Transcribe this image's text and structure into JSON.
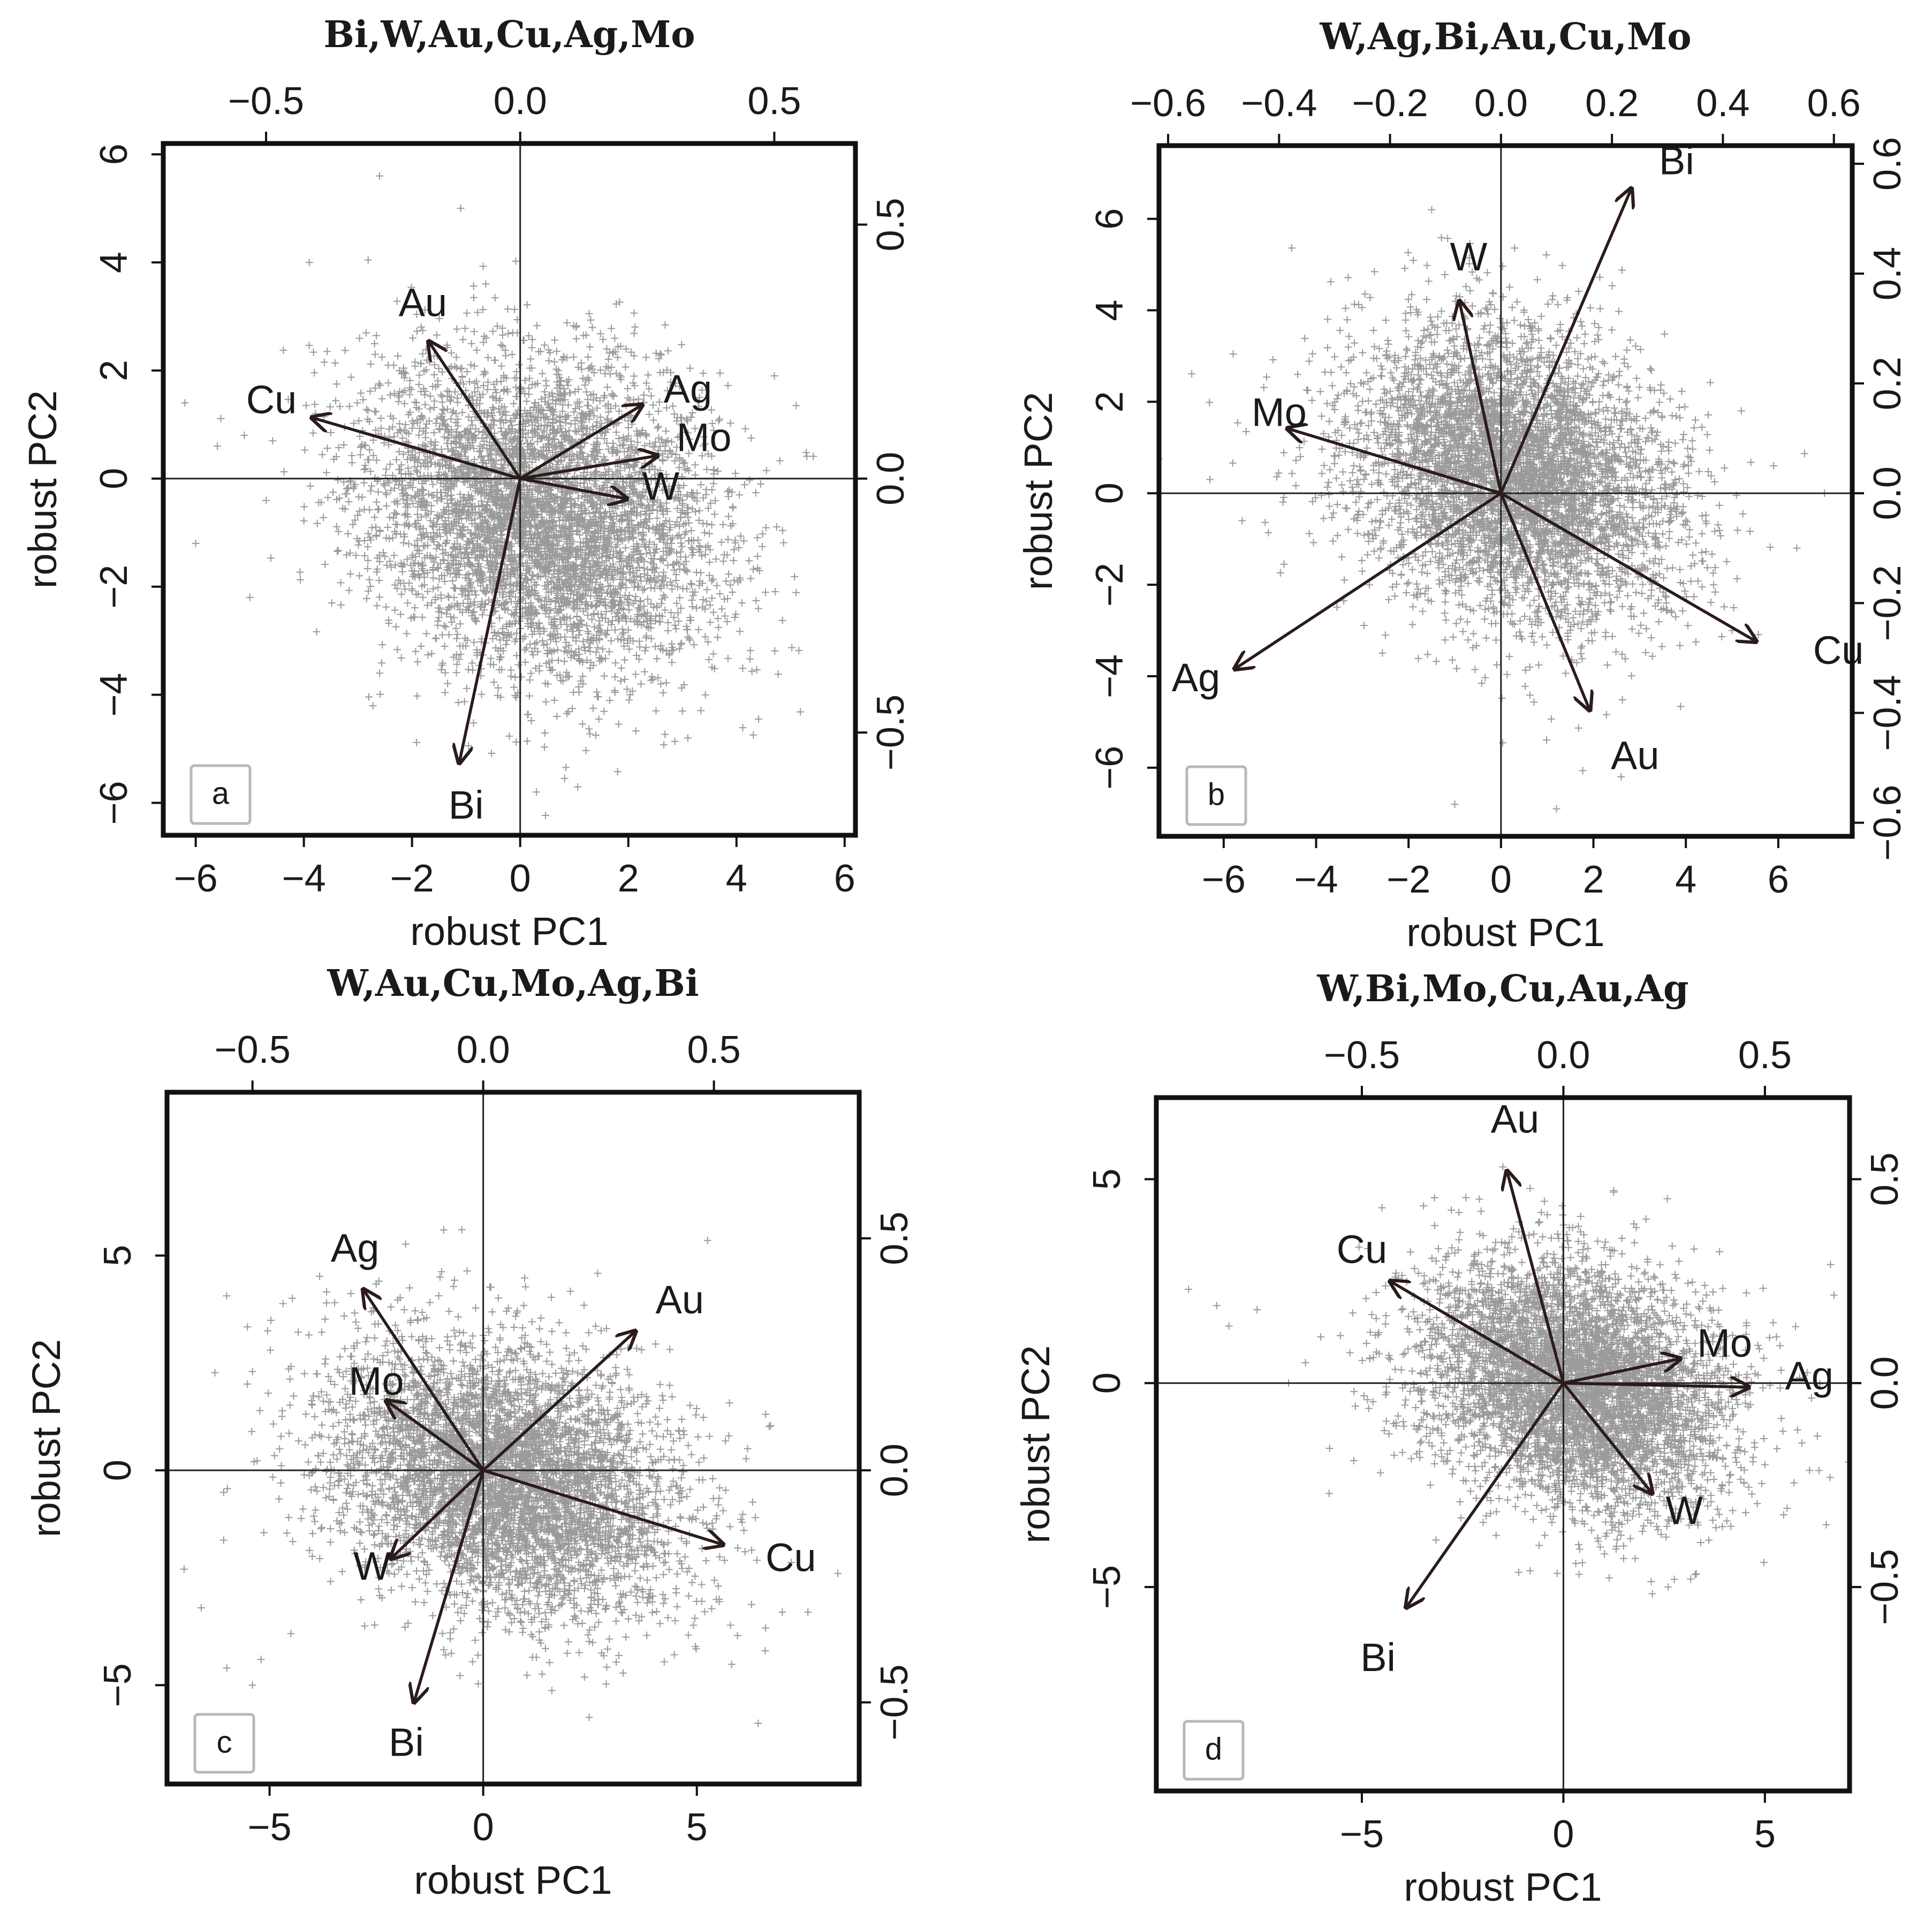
{
  "figure": {
    "description_free": true
  },
  "chart_data": [
    {
      "id": "a",
      "type": "biplot",
      "panel_label": "a",
      "title": "Bi,W,Au,Cu,Ag,Mo",
      "xlabel": "robust PC1",
      "ylabel": "robust PC2",
      "xlim": [
        -6.6,
        6.2
      ],
      "ylim": [
        -6.6,
        6.2
      ],
      "xticks": [
        -6,
        -4,
        -2,
        0,
        2,
        4,
        6
      ],
      "xtick_labels": [
        "−6",
        "−4",
        "−2",
        "0",
        "2",
        "4",
        "6"
      ],
      "yticks": [
        -6,
        -4,
        -2,
        0,
        2,
        4,
        6
      ],
      "ytick_labels": [
        "−6",
        "−4",
        "−2",
        "0",
        "2",
        "4",
        "6"
      ],
      "top_ticks": [
        -0.5,
        0.0,
        0.5
      ],
      "top_tick_labels": [
        "−0.5",
        "0.0",
        "0.5"
      ],
      "right_ticks": [
        -0.5,
        0.0,
        0.5
      ],
      "right_tick_labels": [
        "−0.5",
        "0.0",
        "0.5"
      ],
      "loading_scale": 0.1064,
      "scatter_center": [
        0.4,
        -0.7
      ],
      "scatter_spread": [
        1.6,
        1.45
      ],
      "scatter_corr": -0.2,
      "outliers": [
        [
          -6.2,
          1.4
        ],
        [
          -5.6,
          0.6
        ],
        [
          -5.1,
          0.8
        ],
        [
          -6.0,
          -1.2
        ],
        [
          -5.0,
          -2.2
        ],
        [
          -3.9,
          4.0
        ],
        [
          -2.6,
          5.6
        ],
        [
          -1.1,
          5.0
        ],
        [
          4.7,
          1.9
        ],
        [
          3.1,
          -4.8
        ],
        [
          2.6,
          -3.8
        ],
        [
          0.3,
          -5.8
        ],
        [
          -2.6,
          -3.6
        ],
        [
          4.1,
          -2.3
        ]
      ],
      "loadings": [
        {
          "name": "Au",
          "x": -0.18,
          "y": 0.27,
          "label_pos": [
            -1.8,
            3.2
          ]
        },
        {
          "name": "Cu",
          "x": -0.41,
          "y": 0.12,
          "label_pos": [
            -4.6,
            1.4
          ]
        },
        {
          "name": "Ag",
          "x": 0.24,
          "y": 0.145,
          "label_pos": [
            3.1,
            1.6
          ]
        },
        {
          "name": "Mo",
          "x": 0.27,
          "y": 0.045,
          "label_pos": [
            3.4,
            0.7
          ]
        },
        {
          "name": "W",
          "x": 0.21,
          "y": -0.04,
          "label_pos": [
            2.6,
            -0.2
          ]
        },
        {
          "name": "Bi",
          "x": -0.12,
          "y": -0.56,
          "label_pos": [
            -1.0,
            -6.1
          ]
        }
      ]
    },
    {
      "id": "b",
      "type": "biplot",
      "panel_label": "b",
      "title": "W,Ag,Bi,Au,Cu,Mo",
      "xlabel": "robust PC1",
      "ylabel": "robust PC2",
      "xlim": [
        -7.4,
        7.6
      ],
      "ylim": [
        -7.5,
        7.6
      ],
      "xticks": [
        -6,
        -4,
        -2,
        0,
        2,
        4,
        6
      ],
      "xtick_labels": [
        "−6",
        "−4",
        "−2",
        "0",
        "2",
        "4",
        "6"
      ],
      "yticks": [
        -6,
        -4,
        -2,
        0,
        2,
        4,
        6
      ],
      "ytick_labels": [
        "−6",
        "−4",
        "−2",
        "0",
        "2",
        "4",
        "6"
      ],
      "top_ticks": [
        -0.6,
        -0.4,
        -0.2,
        0.0,
        0.2,
        0.4,
        0.6
      ],
      "top_tick_labels": [
        "−0.6",
        "−0.4",
        "−0.2",
        "0.0",
        "0.2",
        "0.4",
        "0.6"
      ],
      "right_ticks": [
        -0.6,
        -0.4,
        -0.2,
        0.0,
        0.2,
        0.4,
        0.6
      ],
      "right_tick_labels": [
        "−0.6",
        "−0.4",
        "−0.2",
        "0.0",
        "0.2",
        "0.4",
        "0.6"
      ],
      "loading_scale": 0.0833,
      "scatter_center": [
        0.3,
        0.4
      ],
      "scatter_spread": [
        1.75,
        1.6
      ],
      "scatter_corr": -0.25,
      "outliers": [
        [
          -6.3,
          0.3
        ],
        [
          -5.6,
          -0.6
        ],
        [
          5.9,
          0.6
        ],
        [
          6.4,
          -1.2
        ],
        [
          7.0,
          0.0
        ],
        [
          5.0,
          -3.0
        ],
        [
          -1.5,
          6.2
        ],
        [
          2.6,
          -6.2
        ],
        [
          1.2,
          -6.9
        ],
        [
          -1.0,
          -6.8
        ],
        [
          4.6,
          -2.0
        ],
        [
          -4.4,
          2.6
        ],
        [
          5.2,
          1.8
        ]
      ],
      "loadings": [
        {
          "name": "W",
          "x": -0.075,
          "y": 0.35,
          "label_pos": [
            -0.7,
            5.1
          ]
        },
        {
          "name": "Ag",
          "x": -0.48,
          "y": -0.32,
          "label_pos": [
            -6.6,
            -4.1
          ]
        },
        {
          "name": "Bi",
          "x": 0.235,
          "y": 0.555,
          "label_pos": [
            3.8,
            7.2
          ]
        },
        {
          "name": "Au",
          "x": 0.16,
          "y": -0.395,
          "label_pos": [
            2.9,
            -5.8
          ]
        },
        {
          "name": "Cu",
          "x": 0.46,
          "y": -0.27,
          "label_pos": [
            7.3,
            -3.5
          ]
        },
        {
          "name": "Mo",
          "x": -0.385,
          "y": 0.118,
          "label_pos": [
            -4.8,
            1.7
          ]
        }
      ]
    },
    {
      "id": "c",
      "type": "biplot",
      "panel_label": "c",
      "title": "W,Au,Cu,Mo,Ag,Bi",
      "xlabel": "robust PC1",
      "ylabel": "robust PC2",
      "xlim": [
        -7.4,
        8.8
      ],
      "ylim": [
        -7.3,
        8.8
      ],
      "xticks": [
        -5,
        0,
        5
      ],
      "xtick_labels": [
        "−5",
        "0",
        "5"
      ],
      "yticks": [
        -5,
        0,
        5
      ],
      "ytick_labels": [
        "−5",
        "0",
        "5"
      ],
      "top_ticks": [
        -0.5,
        0.0,
        0.5
      ],
      "top_tick_labels": [
        "−0.5",
        "0.0",
        "0.5"
      ],
      "right_ticks": [
        -0.5,
        0.0,
        0.5
      ],
      "right_tick_labels": [
        "−0.5",
        "0.0",
        "0.5"
      ],
      "loading_scale": 0.0926,
      "scatter_center": [
        0.5,
        -0.2
      ],
      "scatter_spread": [
        2.0,
        1.6
      ],
      "scatter_corr": -0.3,
      "outliers": [
        [
          -7.0,
          -2.3
        ],
        [
          -6.0,
          -4.6
        ],
        [
          -5.2,
          -4.4
        ],
        [
          -5.4,
          -5.0
        ],
        [
          -4.5,
          -3.8
        ],
        [
          -6.6,
          -3.2
        ],
        [
          -5.4,
          2.3
        ],
        [
          7.0,
          -3.3
        ],
        [
          8.3,
          -2.4
        ],
        [
          7.6,
          -3.3
        ],
        [
          6.6,
          -4.2
        ],
        [
          -0.5,
          5.6
        ],
        [
          2.5,
          -3.2
        ],
        [
          -4.0,
          -2.0
        ]
      ],
      "loadings": [
        {
          "name": "Ag",
          "x": -0.26,
          "y": 0.39,
          "label_pos": [
            -3.0,
            5.1
          ]
        },
        {
          "name": "Au",
          "x": 0.33,
          "y": 0.3,
          "label_pos": [
            4.6,
            3.9
          ]
        },
        {
          "name": "Mo",
          "x": -0.21,
          "y": 0.15,
          "label_pos": [
            -2.5,
            2.0
          ]
        },
        {
          "name": "Cu",
          "x": 0.52,
          "y": -0.16,
          "label_pos": [
            7.2,
            -2.1
          ]
        },
        {
          "name": "W",
          "x": -0.2,
          "y": -0.19,
          "label_pos": [
            -2.6,
            -2.3
          ]
        },
        {
          "name": "Bi",
          "x": -0.15,
          "y": -0.5,
          "label_pos": [
            -1.8,
            -6.4
          ]
        }
      ]
    },
    {
      "id": "d",
      "type": "biplot",
      "panel_label": "d",
      "title": "W,Bi,Mo,Cu,Au,Ag",
      "xlabel": "robust PC1",
      "ylabel": "robust PC2",
      "xlim": [
        -10.1,
        7.1
      ],
      "ylim": [
        -10.0,
        7.0
      ],
      "xticks": [
        -5,
        0,
        5
      ],
      "xtick_labels": [
        "−5",
        "0",
        "5"
      ],
      "yticks": [
        -5,
        0,
        5
      ],
      "ytick_labels": [
        "−5",
        "0",
        "5"
      ],
      "top_ticks": [
        -0.5,
        0.0,
        0.5
      ],
      "top_tick_labels": [
        "−0.5",
        "0.0",
        "0.5"
      ],
      "right_ticks": [
        -0.5,
        0.0,
        0.5
      ],
      "right_tick_labels": [
        "−0.5",
        "0.0",
        "0.5"
      ],
      "loading_scale": 0.1,
      "scatter_center": [
        0.3,
        0.0
      ],
      "scatter_spread": [
        1.9,
        1.5
      ],
      "scatter_corr": -0.25,
      "outliers": [
        [
          -9.3,
          2.3
        ],
        [
          -8.6,
          1.9
        ],
        [
          -8.3,
          1.4
        ],
        [
          -7.6,
          1.8
        ],
        [
          -6.4,
          0.5
        ],
        [
          -5.8,
          -1.6
        ],
        [
          -4.5,
          4.3
        ],
        [
          6.3,
          -1.3
        ],
        [
          5.0,
          -2.0
        ],
        [
          2.6,
          -5.0
        ],
        [
          -3.3,
          -2.5
        ],
        [
          -1.5,
          5.3
        ],
        [
          -5.2,
          -1.9
        ]
      ],
      "loadings": [
        {
          "name": "Au",
          "x": -0.14,
          "y": 0.52,
          "label_pos": [
            -1.2,
            6.4
          ]
        },
        {
          "name": "Cu",
          "x": -0.43,
          "y": 0.25,
          "label_pos": [
            -5.0,
            3.2
          ]
        },
        {
          "name": "Mo",
          "x": 0.29,
          "y": 0.06,
          "label_pos": [
            4.0,
            0.9
          ]
        },
        {
          "name": "Ag",
          "x": 0.46,
          "y": -0.01,
          "label_pos": [
            6.1,
            0.1
          ]
        },
        {
          "name": "W",
          "x": 0.22,
          "y": -0.27,
          "label_pos": [
            3.0,
            -3.2
          ]
        },
        {
          "name": "Bi",
          "x": -0.39,
          "y": -0.55,
          "label_pos": [
            -4.6,
            -6.8
          ]
        }
      ]
    }
  ]
}
